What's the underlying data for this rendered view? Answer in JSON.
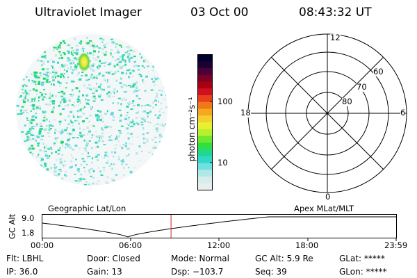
{
  "header": {
    "title": "Ultraviolet Imager",
    "date": "03 Oct 00",
    "time": "08:43:32 UT"
  },
  "colorbar": {
    "unit_label": "photon cm⁻²s⁻¹",
    "tick_labels": [
      "100",
      "10"
    ],
    "colors": [
      "#000030",
      "#1a0033",
      "#4a0038",
      "#7a0025",
      "#a80010",
      "#d01020",
      "#e8401a",
      "#f07818",
      "#f4a820",
      "#f2d030",
      "#e8f030",
      "#b8f030",
      "#70e830",
      "#30e040",
      "#20d890",
      "#30d8c8",
      "#70e0e0",
      "#b0e8e8",
      "#d8eceb",
      "#e8eeee"
    ]
  },
  "polar_plot": {
    "mlt_labels": {
      "top": "12",
      "bottom": "0",
      "left": "18",
      "right": "6"
    },
    "lat_labels": [
      "60",
      "70",
      "80"
    ]
  },
  "timeline": {
    "left_caption": "Geographic Lat/Lon",
    "right_caption": "Apex MLat/MLT",
    "y_axis_label": "GC Alt",
    "y_ticks": [
      "9.0",
      "1.8"
    ],
    "x_ticks": [
      "00:00",
      "06:00",
      "12:00",
      "18:00",
      "23:59"
    ],
    "current_time_fraction": 0.3637,
    "marker_color": "#cc2222"
  },
  "info_rows": [
    [
      {
        "key": "Flt",
        "text": "Flt: LBHL"
      },
      {
        "key": "Door",
        "text": "Door: Closed"
      },
      {
        "key": "Mode",
        "text": "Mode: Normal"
      },
      {
        "key": "GCAlt",
        "text": "GC Alt: 5.9 Re"
      },
      {
        "key": "GLat",
        "text": "GLat: *****"
      }
    ],
    [
      {
        "key": "IP",
        "text": "IP: 36.0"
      },
      {
        "key": "Gain",
        "text": "Gain: 13"
      },
      {
        "key": "Dsp",
        "text": "Dsp: −103.7"
      },
      {
        "key": "Seq",
        "text": "Seq: 39"
      },
      {
        "key": "GLon",
        "text": "GLon: *****"
      }
    ]
  ]
}
